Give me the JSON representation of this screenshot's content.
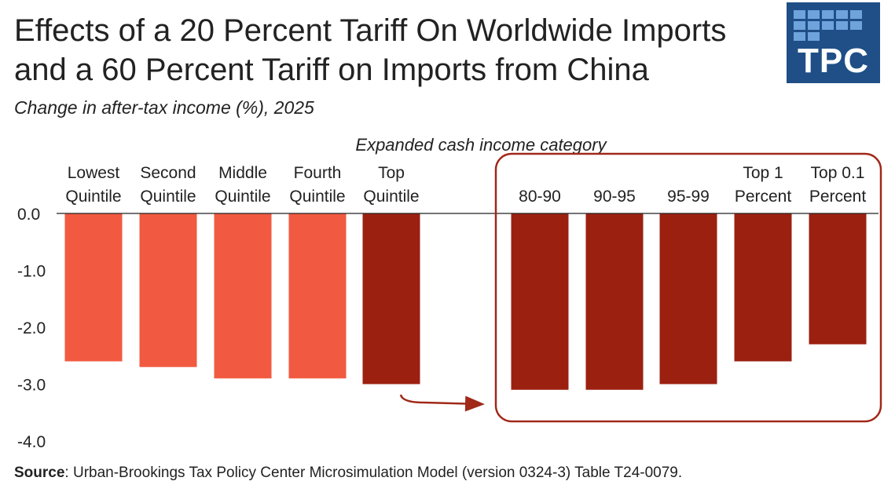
{
  "title_line1": "Effects of a 20 Percent Tariff On Worldwide Imports",
  "title_line2": "and a 60 Percent Tariff on Imports from China",
  "subtitle": "Change in after-tax income (%), 2025",
  "logo": {
    "text": "TPC"
  },
  "source_label": "Source",
  "source_text": ": Urban-Brookings Tax Policy Center Microsimulation Model (version 0324-3) Table T24-0079.",
  "colors": {
    "light": "#f15a40",
    "dark": "#9b2010",
    "box": "#a0291a",
    "logo": "#1f4f86"
  },
  "chart_data": {
    "type": "bar",
    "xlabel": "Expanded cash income category",
    "ylim": [
      -4.0,
      0.0
    ],
    "yticks": [
      "0.0",
      "-1.0",
      "-2.0",
      "-3.0",
      "-4.0"
    ],
    "ytick_values": [
      0,
      -1,
      -2,
      -3,
      -4
    ],
    "categories": [
      [
        "Lowest",
        "Quintile"
      ],
      [
        "Second",
        "Quintile"
      ],
      [
        "Middle",
        "Quintile"
      ],
      [
        "Fourth",
        "Quintile"
      ],
      [
        "Top",
        "Quintile"
      ],
      [
        "80-90"
      ],
      [
        "90-95"
      ],
      [
        "95-99"
      ],
      [
        "Top 1",
        "Percent"
      ],
      [
        "Top 0.1",
        "Percent"
      ]
    ],
    "values": [
      -2.6,
      -2.7,
      -2.9,
      -2.9,
      -3.0,
      -3.1,
      -3.1,
      -3.0,
      -2.6,
      -2.3
    ],
    "bar_colors": [
      "light",
      "light",
      "light",
      "light",
      "dark",
      "dark",
      "dark",
      "dark",
      "dark",
      "dark"
    ],
    "grid": false,
    "legend": "none"
  }
}
